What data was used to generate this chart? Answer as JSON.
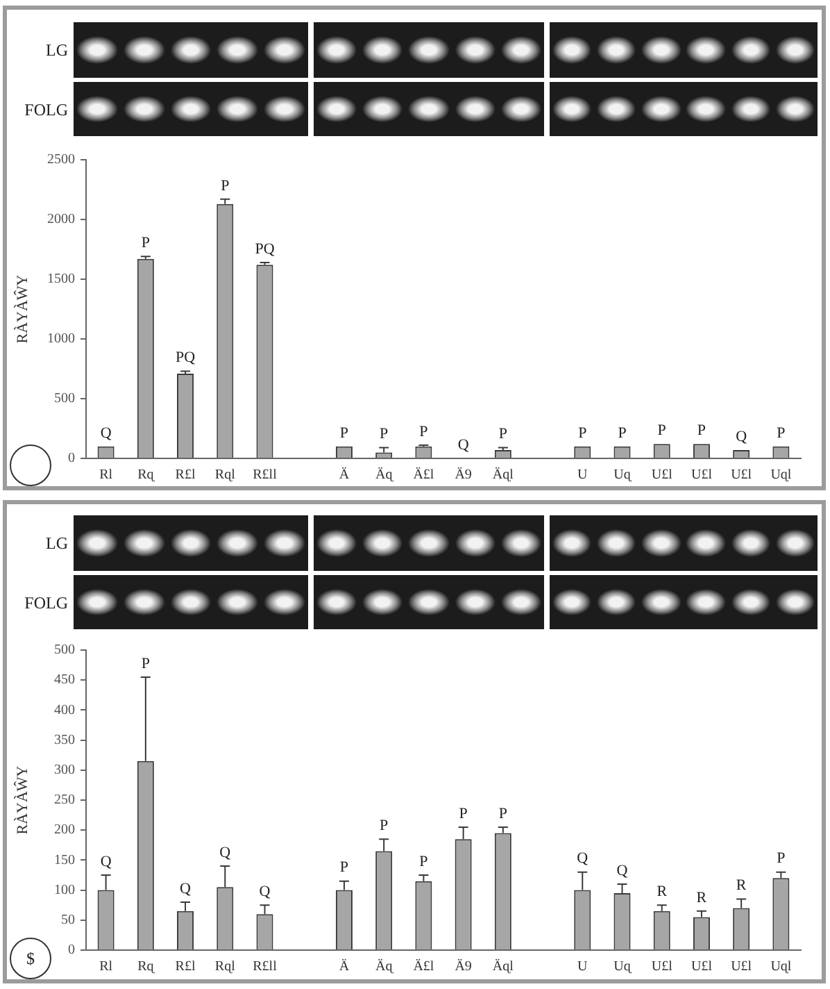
{
  "chart_data": [
    {
      "type": "bar",
      "ylabel": "RÀYÀŴY",
      "annotations": [
        "LG",
        "FOLG"
      ],
      "categories": [
        "Rl",
        "Rɋ",
        "R£l",
        "Rɋl",
        "R£ll",
        null,
        "Ä",
        "Äɋ",
        "Ä£l",
        "Ä9",
        "Äɋl",
        null,
        "U",
        "Uɋ",
        "U£l",
        "U£l",
        "U£l",
        "Uɋl"
      ],
      "values": [
        100,
        1670,
        710,
        2130,
        1620,
        null,
        100,
        50,
        100,
        0,
        70,
        null,
        100,
        100,
        120,
        120,
        70,
        100
      ],
      "errors": [
        null,
        [
          1670,
          1690
        ],
        [
          710,
          730
        ],
        [
          2130,
          2170
        ],
        [
          1620,
          1640
        ],
        null,
        null,
        [
          50,
          90
        ],
        [
          100,
          110
        ],
        null,
        [
          70,
          90
        ],
        null,
        null,
        null,
        null,
        null,
        null,
        null
      ],
      "value_labels": [
        "Q",
        "P",
        "PQ",
        "P",
        "PQ",
        null,
        "P",
        "P",
        "P",
        "Q",
        "P",
        null,
        "P",
        "P",
        "P",
        "P",
        "Q",
        "P"
      ],
      "color": "#a6a6a6",
      "ylim": [
        0,
        2500
      ],
      "yticks": [
        0,
        500,
        1000,
        1500,
        2000,
        2500
      ]
    },
    {
      "type": "bar",
      "ylabel": "RÀYÀŴY",
      "annotations": [
        "LG",
        "FOLG",
        "$",
        {
          "text": "P",
          "x": "Rɋ",
          "y": 455
        }
      ],
      "categories": [
        "Rl",
        "Rɋ",
        "R£l",
        "Rɋl",
        "R£ll",
        null,
        "Ä",
        "Äɋ",
        "Ä£l",
        "Ä9",
        "Äɋl",
        null,
        "U",
        "Uɋ",
        "U£l",
        "U£l",
        "U£l",
        "Uɋl"
      ],
      "values": [
        100,
        315,
        65,
        105,
        60,
        null,
        100,
        165,
        115,
        185,
        195,
        null,
        100,
        95,
        65,
        55,
        70,
        120
      ],
      "errors": [
        [
          100,
          125
        ],
        [
          315,
          455
        ],
        [
          65,
          80
        ],
        [
          105,
          140
        ],
        [
          60,
          75
        ],
        null,
        [
          100,
          115
        ],
        [
          165,
          185
        ],
        [
          115,
          125
        ],
        [
          185,
          205
        ],
        [
          195,
          205
        ],
        null,
        [
          100,
          130
        ],
        [
          95,
          110
        ],
        [
          65,
          75
        ],
        [
          55,
          65
        ],
        [
          70,
          85
        ],
        [
          120,
          130
        ]
      ],
      "value_labels": [
        "Q",
        null,
        "Q",
        "Q",
        "Q",
        null,
        "P",
        "P",
        "P",
        "P",
        "P",
        null,
        "Q",
        "Q",
        "R",
        "R",
        "R",
        "P"
      ],
      "color": "#a6a6a6",
      "ylim": [
        0,
        500
      ],
      "yticks": [
        0,
        50,
        100,
        150,
        200,
        250,
        300,
        350,
        400,
        450,
        500
      ]
    }
  ]
}
